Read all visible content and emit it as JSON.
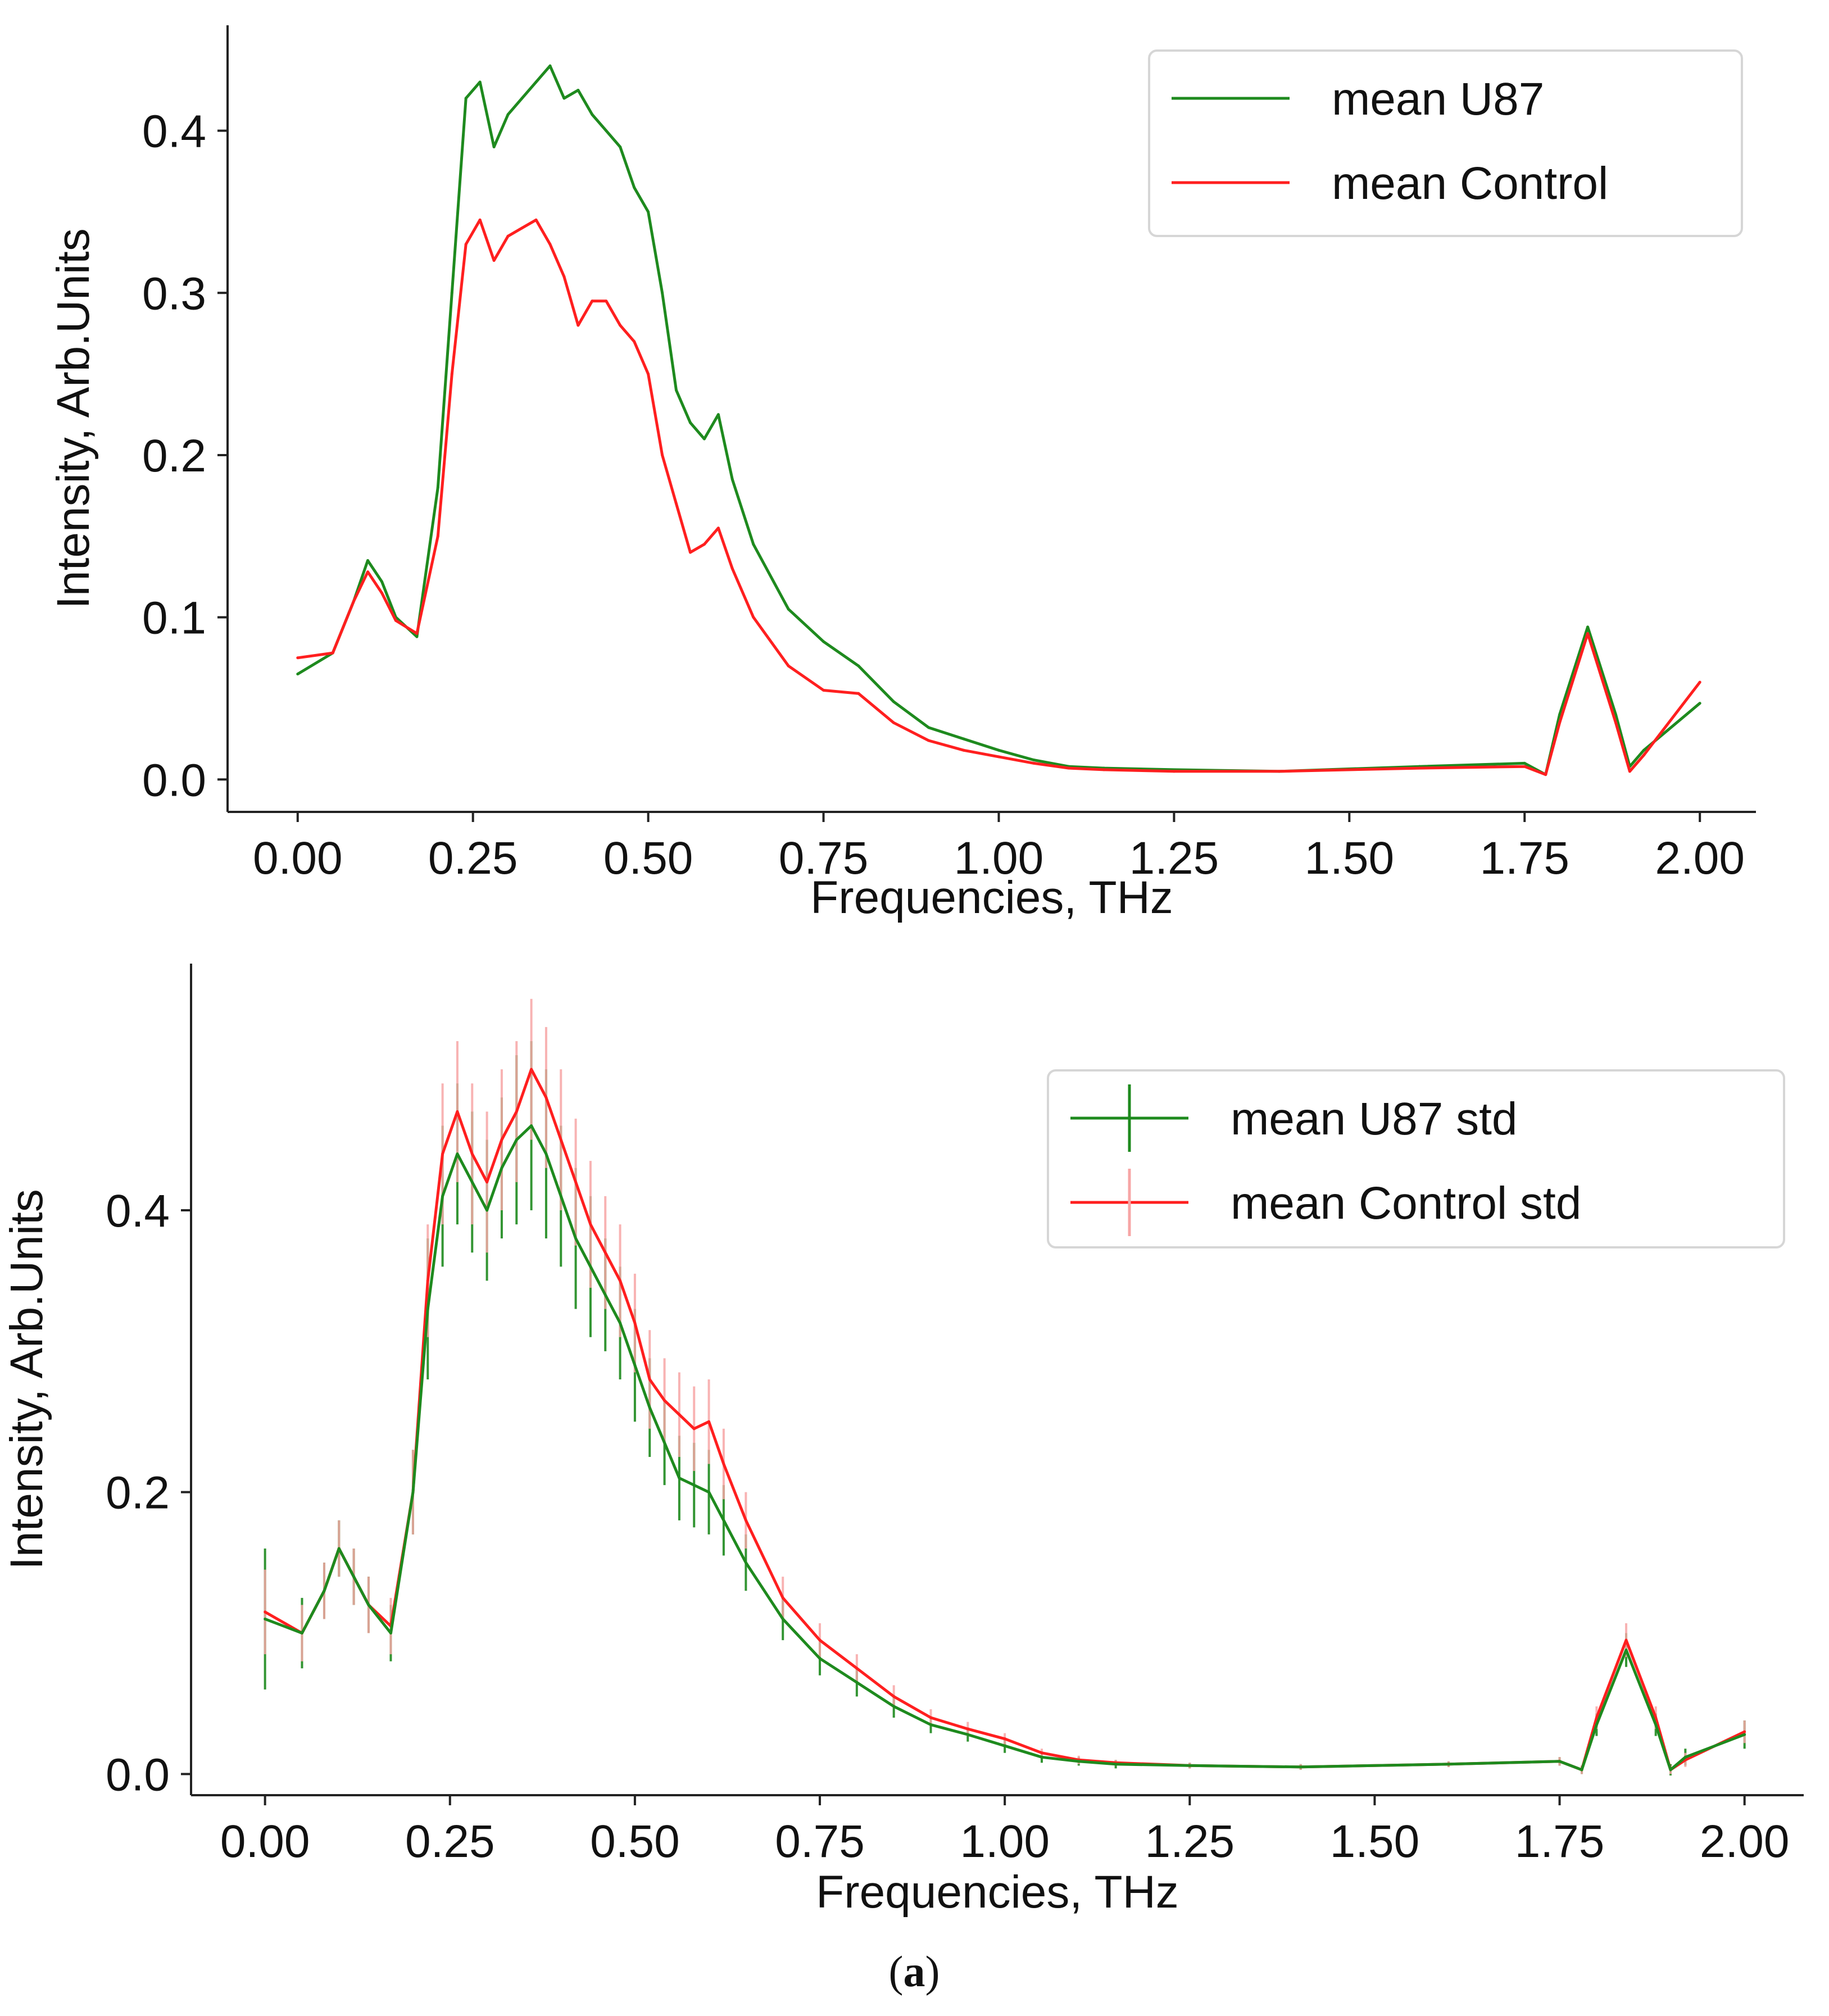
{
  "colors": {
    "u87": "#1e8a1e",
    "control": "#ff1f1f",
    "control_err": "#f7a6a6",
    "axis": "#222222"
  },
  "caption": {
    "open": "(",
    "letter": "a",
    "close": ")"
  },
  "chart_data": [
    {
      "type": "line",
      "title": "",
      "xlabel": "Frequencies, THz",
      "ylabel": "Intensity, Arb.Units",
      "xlim": [
        -0.1,
        2.08
      ],
      "ylim": [
        -0.02,
        0.465
      ],
      "xticks": [
        0,
        0.25,
        0.5,
        0.75,
        1.0,
        1.25,
        1.5,
        1.75,
        2.0
      ],
      "xtick_labels": [
        "0.00",
        "0.25",
        "0.50",
        "0.75",
        "1.00",
        "1.25",
        "1.50",
        "1.75",
        "2.00"
      ],
      "yticks": [
        0,
        0.1,
        0.2,
        0.3,
        0.4
      ],
      "ytick_labels": [
        "0.0",
        "0.1",
        "0.2",
        "0.3",
        "0.4"
      ],
      "legend_position": "top-right",
      "x": [
        0,
        0.05,
        0.08,
        0.1,
        0.12,
        0.14,
        0.17,
        0.2,
        0.22,
        0.24,
        0.26,
        0.28,
        0.3,
        0.32,
        0.34,
        0.36,
        0.38,
        0.4,
        0.42,
        0.44,
        0.46,
        0.48,
        0.5,
        0.52,
        0.54,
        0.56,
        0.58,
        0.6,
        0.62,
        0.65,
        0.7,
        0.75,
        0.8,
        0.85,
        0.9,
        0.95,
        1.0,
        1.05,
        1.1,
        1.15,
        1.25,
        1.4,
        1.6,
        1.75,
        1.78,
        1.8,
        1.84,
        1.88,
        1.9,
        1.92,
        2.0
      ],
      "series": [
        {
          "name": "mean U87",
          "color_key": "u87",
          "values": [
            0.065,
            0.078,
            0.11,
            0.135,
            0.122,
            0.1,
            0.088,
            0.18,
            0.3,
            0.42,
            0.43,
            0.39,
            0.41,
            0.42,
            0.43,
            0.44,
            0.42,
            0.425,
            0.41,
            0.4,
            0.39,
            0.365,
            0.35,
            0.3,
            0.24,
            0.22,
            0.21,
            0.225,
            0.185,
            0.145,
            0.105,
            0.085,
            0.07,
            0.048,
            0.032,
            0.025,
            0.018,
            0.012,
            0.008,
            0.007,
            0.006,
            0.005,
            0.008,
            0.01,
            0.003,
            0.04,
            0.094,
            0.04,
            0.008,
            0.018,
            0.047
          ]
        },
        {
          "name": "mean Control",
          "color_key": "control",
          "values": [
            0.075,
            0.078,
            0.11,
            0.128,
            0.115,
            0.098,
            0.09,
            0.15,
            0.25,
            0.33,
            0.345,
            0.32,
            0.335,
            0.34,
            0.345,
            0.33,
            0.31,
            0.28,
            0.295,
            0.295,
            0.28,
            0.27,
            0.25,
            0.2,
            0.17,
            0.14,
            0.145,
            0.155,
            0.13,
            0.1,
            0.07,
            0.055,
            0.053,
            0.035,
            0.024,
            0.018,
            0.014,
            0.01,
            0.007,
            0.006,
            0.005,
            0.005,
            0.007,
            0.008,
            0.003,
            0.035,
            0.09,
            0.035,
            0.005,
            0.015,
            0.06
          ]
        }
      ]
    },
    {
      "type": "line",
      "title": "",
      "xlabel": "Frequencies, THz",
      "ylabel": "Intensity, Arb.Units",
      "xlim": [
        -0.1,
        2.08
      ],
      "ylim": [
        -0.015,
        0.575
      ],
      "xticks": [
        0,
        0.25,
        0.5,
        0.75,
        1.0,
        1.25,
        1.5,
        1.75,
        2.0
      ],
      "xtick_labels": [
        "0.00",
        "0.25",
        "0.50",
        "0.75",
        "1.00",
        "1.25",
        "1.50",
        "1.75",
        "2.00"
      ],
      "yticks": [
        0,
        0.2,
        0.4
      ],
      "ytick_labels": [
        "0.0",
        "0.2",
        "0.4"
      ],
      "legend_position": "top-right",
      "error_bars": true,
      "x": [
        0,
        0.05,
        0.08,
        0.1,
        0.12,
        0.14,
        0.17,
        0.2,
        0.22,
        0.24,
        0.26,
        0.28,
        0.3,
        0.32,
        0.34,
        0.36,
        0.38,
        0.4,
        0.42,
        0.44,
        0.46,
        0.48,
        0.5,
        0.52,
        0.54,
        0.56,
        0.58,
        0.6,
        0.62,
        0.65,
        0.7,
        0.75,
        0.8,
        0.85,
        0.9,
        0.95,
        1.0,
        1.05,
        1.1,
        1.15,
        1.25,
        1.4,
        1.6,
        1.75,
        1.78,
        1.8,
        1.84,
        1.88,
        1.9,
        1.92,
        2.0
      ],
      "series": [
        {
          "name": "mean U87 std",
          "color_key": "u87",
          "values": [
            0.11,
            0.1,
            0.13,
            0.16,
            0.14,
            0.12,
            0.1,
            0.2,
            0.33,
            0.41,
            0.44,
            0.42,
            0.4,
            0.43,
            0.45,
            0.46,
            0.44,
            0.41,
            0.38,
            0.36,
            0.34,
            0.32,
            0.29,
            0.26,
            0.235,
            0.21,
            0.205,
            0.2,
            0.18,
            0.15,
            0.11,
            0.082,
            0.065,
            0.048,
            0.035,
            0.028,
            0.02,
            0.012,
            0.009,
            0.007,
            0.006,
            0.005,
            0.007,
            0.009,
            0.003,
            0.035,
            0.088,
            0.035,
            0.003,
            0.012,
            0.028
          ],
          "errors": [
            0.05,
            0.025,
            0.02,
            0.02,
            0.02,
            0.02,
            0.02,
            0.03,
            0.05,
            0.05,
            0.05,
            0.05,
            0.05,
            0.05,
            0.06,
            0.06,
            0.06,
            0.05,
            0.05,
            0.05,
            0.04,
            0.04,
            0.04,
            0.035,
            0.03,
            0.03,
            0.03,
            0.03,
            0.025,
            0.02,
            0.015,
            0.012,
            0.01,
            0.008,
            0.006,
            0.005,
            0.005,
            0.004,
            0.003,
            0.003,
            0.002,
            0.002,
            0.002,
            0.003,
            0.003,
            0.008,
            0.012,
            0.008,
            0.004,
            0.006,
            0.01
          ]
        },
        {
          "name": "mean Control std",
          "color_key": "control",
          "values": [
            0.115,
            0.1,
            0.13,
            0.16,
            0.14,
            0.12,
            0.105,
            0.2,
            0.35,
            0.44,
            0.47,
            0.44,
            0.42,
            0.45,
            0.47,
            0.5,
            0.48,
            0.45,
            0.42,
            0.39,
            0.37,
            0.35,
            0.32,
            0.28,
            0.265,
            0.255,
            0.245,
            0.25,
            0.22,
            0.18,
            0.125,
            0.095,
            0.075,
            0.055,
            0.04,
            0.032,
            0.025,
            0.015,
            0.01,
            0.008,
            0.006,
            0.005,
            0.007,
            0.009,
            0.003,
            0.04,
            0.095,
            0.04,
            0.003,
            0.01,
            0.03
          ],
          "errors": [
            0.03,
            0.02,
            0.02,
            0.02,
            0.02,
            0.02,
            0.02,
            0.03,
            0.04,
            0.05,
            0.05,
            0.05,
            0.05,
            0.05,
            0.05,
            0.05,
            0.05,
            0.05,
            0.045,
            0.045,
            0.04,
            0.04,
            0.035,
            0.035,
            0.03,
            0.03,
            0.03,
            0.03,
            0.025,
            0.02,
            0.015,
            0.012,
            0.01,
            0.008,
            0.006,
            0.005,
            0.004,
            0.003,
            0.003,
            0.002,
            0.002,
            0.002,
            0.002,
            0.003,
            0.003,
            0.008,
            0.012,
            0.008,
            0.003,
            0.005,
            0.008
          ]
        }
      ]
    }
  ]
}
